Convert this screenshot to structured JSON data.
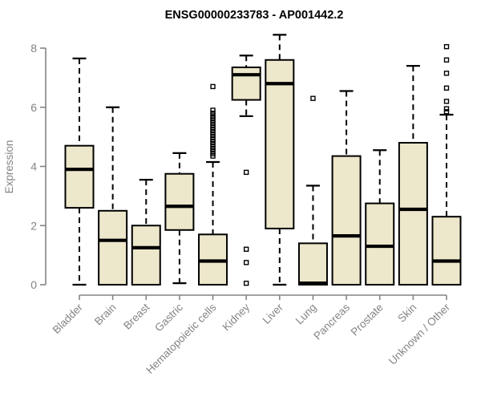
{
  "chart_data": {
    "type": "boxplot",
    "title": "ENSG00000233783 - AP001442.2",
    "xlabel": "",
    "ylabel": "Expression",
    "ylim": [
      0,
      8
    ],
    "yticks": [
      0,
      2,
      4,
      6,
      8
    ],
    "grid": false,
    "legend": "none",
    "categories": [
      "Bladder",
      "Brain",
      "Breast",
      "Gastric",
      "Hematopoietic cells",
      "Kidney",
      "Liver",
      "Lung",
      "Pancreas",
      "Prostate",
      "Skin",
      "Unknown / Other"
    ],
    "series": [
      {
        "name": "Bladder",
        "whisker_low": 0,
        "q1": 2.6,
        "median": 3.9,
        "q3": 4.7,
        "whisker_high": 7.65,
        "outliers": []
      },
      {
        "name": "Brain",
        "whisker_low": 0,
        "q1": 0,
        "median": 1.5,
        "q3": 2.5,
        "whisker_high": 6.0,
        "outliers": []
      },
      {
        "name": "Breast",
        "whisker_low": 0,
        "q1": 0,
        "median": 1.25,
        "q3": 2.0,
        "whisker_high": 3.55,
        "outliers": []
      },
      {
        "name": "Gastric",
        "whisker_low": 0.05,
        "q1": 1.85,
        "median": 2.65,
        "q3": 3.75,
        "whisker_high": 4.45,
        "outliers": []
      },
      {
        "name": "Hematopoietic cells",
        "whisker_low": 0,
        "q1": 0,
        "median": 0.8,
        "q3": 1.7,
        "whisker_high": 4.15,
        "outliers": [
          4.35,
          4.43,
          4.51,
          4.59,
          4.67,
          4.75,
          4.83,
          4.91,
          4.99,
          5.07,
          5.15,
          5.23,
          5.31,
          5.39,
          5.47,
          5.55,
          5.63,
          5.71,
          5.8,
          5.9,
          6.7
        ]
      },
      {
        "name": "Kidney",
        "whisker_low": 5.7,
        "q1": 6.25,
        "median": 7.1,
        "q3": 7.35,
        "whisker_high": 7.75,
        "outliers": [
          3.8,
          1.2,
          0.75,
          0.05
        ]
      },
      {
        "name": "Liver",
        "whisker_low": 0,
        "q1": 1.9,
        "median": 6.8,
        "q3": 7.6,
        "whisker_high": 8.45,
        "outliers": []
      },
      {
        "name": "Lung",
        "whisker_low": 0,
        "q1": 0,
        "median": 0.05,
        "q3": 1.4,
        "whisker_high": 3.35,
        "outliers": [
          6.3
        ]
      },
      {
        "name": "Pancreas",
        "whisker_low": 0,
        "q1": 0,
        "median": 1.65,
        "q3": 4.35,
        "whisker_high": 6.55,
        "outliers": []
      },
      {
        "name": "Prostate",
        "whisker_low": 0,
        "q1": 0,
        "median": 1.3,
        "q3": 2.75,
        "whisker_high": 4.55,
        "outliers": []
      },
      {
        "name": "Skin",
        "whisker_low": 0,
        "q1": 0,
        "median": 2.55,
        "q3": 4.8,
        "whisker_high": 7.4,
        "outliers": []
      },
      {
        "name": "Unknown / Other",
        "whisker_low": 0,
        "q1": 0,
        "median": 0.8,
        "q3": 2.3,
        "whisker_high": 5.75,
        "outliers": [
          5.85,
          5.95,
          6.2,
          6.65,
          7.15,
          7.6,
          8.05
        ]
      }
    ],
    "colors": {
      "box_fill": "#EDE7CB",
      "box_stroke": "#000000",
      "median": "#000000",
      "whisker": "#000000",
      "axis": "#848484",
      "tick_label": "#848484",
      "title": "#000000"
    }
  }
}
